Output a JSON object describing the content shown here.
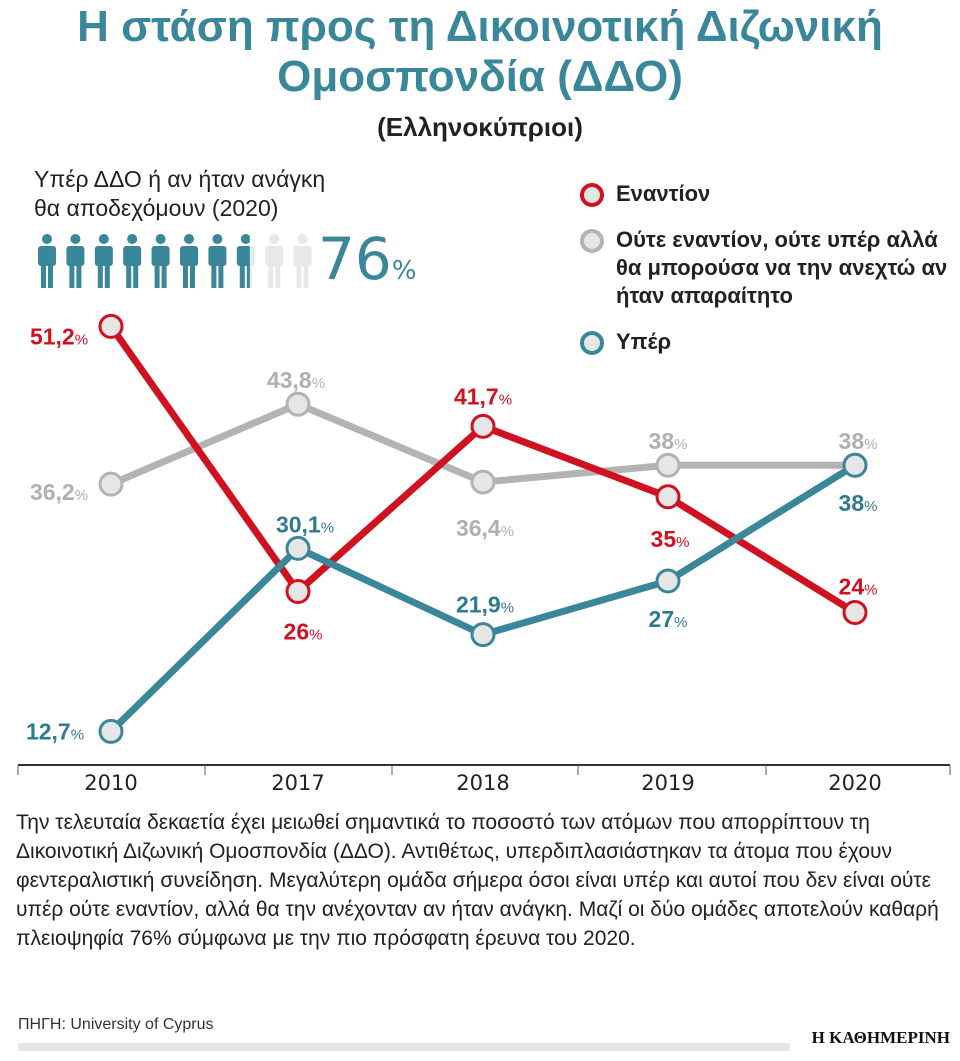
{
  "title": "Η στάση προς τη Δικοινοτική Διζωνική Ομοσπονδία (ΔΔΟ)",
  "subtitle": "(Ελληνοκύπριοι)",
  "callout": {
    "text": "Υπέρ ΔΔΟ ή αν ήταν ανάγκη θα αποδεχόμουν (2020)",
    "value": "76",
    "unit": "%",
    "icons_total": 10,
    "fraction_filled": 0.76
  },
  "colors": {
    "against": "#d0111f",
    "neutral": "#b3b3b3",
    "for": "#3a8799",
    "marker_fill": "#e6e6e6"
  },
  "chart_data": {
    "type": "line",
    "categories": [
      "2010",
      "2017",
      "2018",
      "2019",
      "2020"
    ],
    "series": [
      {
        "name": "Εναντίον",
        "values": [
          51.2,
          26,
          41.7,
          35,
          24
        ],
        "labels": [
          "51,2",
          "26",
          "41,7",
          "35",
          "24"
        ]
      },
      {
        "name": "Ούτε εναντίον, ούτε υπέρ αλλά θα μπορούσα να την ανεχτώ αν ήταν απαραίτητο",
        "values": [
          36.2,
          43.8,
          36.4,
          38,
          38
        ],
        "labels": [
          "36,2",
          "43,8",
          "36,4",
          "38",
          "38"
        ]
      },
      {
        "name": "Υπέρ",
        "values": [
          12.7,
          30.1,
          21.9,
          27,
          38
        ],
        "labels": [
          "12,7",
          "30,1",
          "21,9",
          "27",
          "38"
        ]
      }
    ],
    "unit": "%",
    "grid": false,
    "legend": "top-right"
  },
  "body_text": "Την τελευταία δεκαετία έχει μειωθεί σημαντικά το ποσοστό των ατόμων που απορρίπτουν τη Δικοινοτική Διζωνική Ομοσπονδία (ΔΔΟ). Αντιθέτως, υπερδιπλασιάστηκαν τα άτομα που έχουν φεντεραλιστική συνείδηση. Μεγαλύτερη ομάδα σήμερα όσοι είναι υπέρ και αυτοί που δεν είναι ούτε υπέρ ούτε εναντίον, αλλά θα την ανέχονταν αν ήταν ανάγκη. Μαζί οι δύο ομάδες αποτελούν καθαρή πλειοψηφία 76% σύμφωνα με την πιο πρόσφατη έρευνα του 2020.",
  "source": "ΠΗΓΗ: University of Cyprus",
  "brand": "Η ΚΑΘΗΜΕΡΙΝΗ"
}
